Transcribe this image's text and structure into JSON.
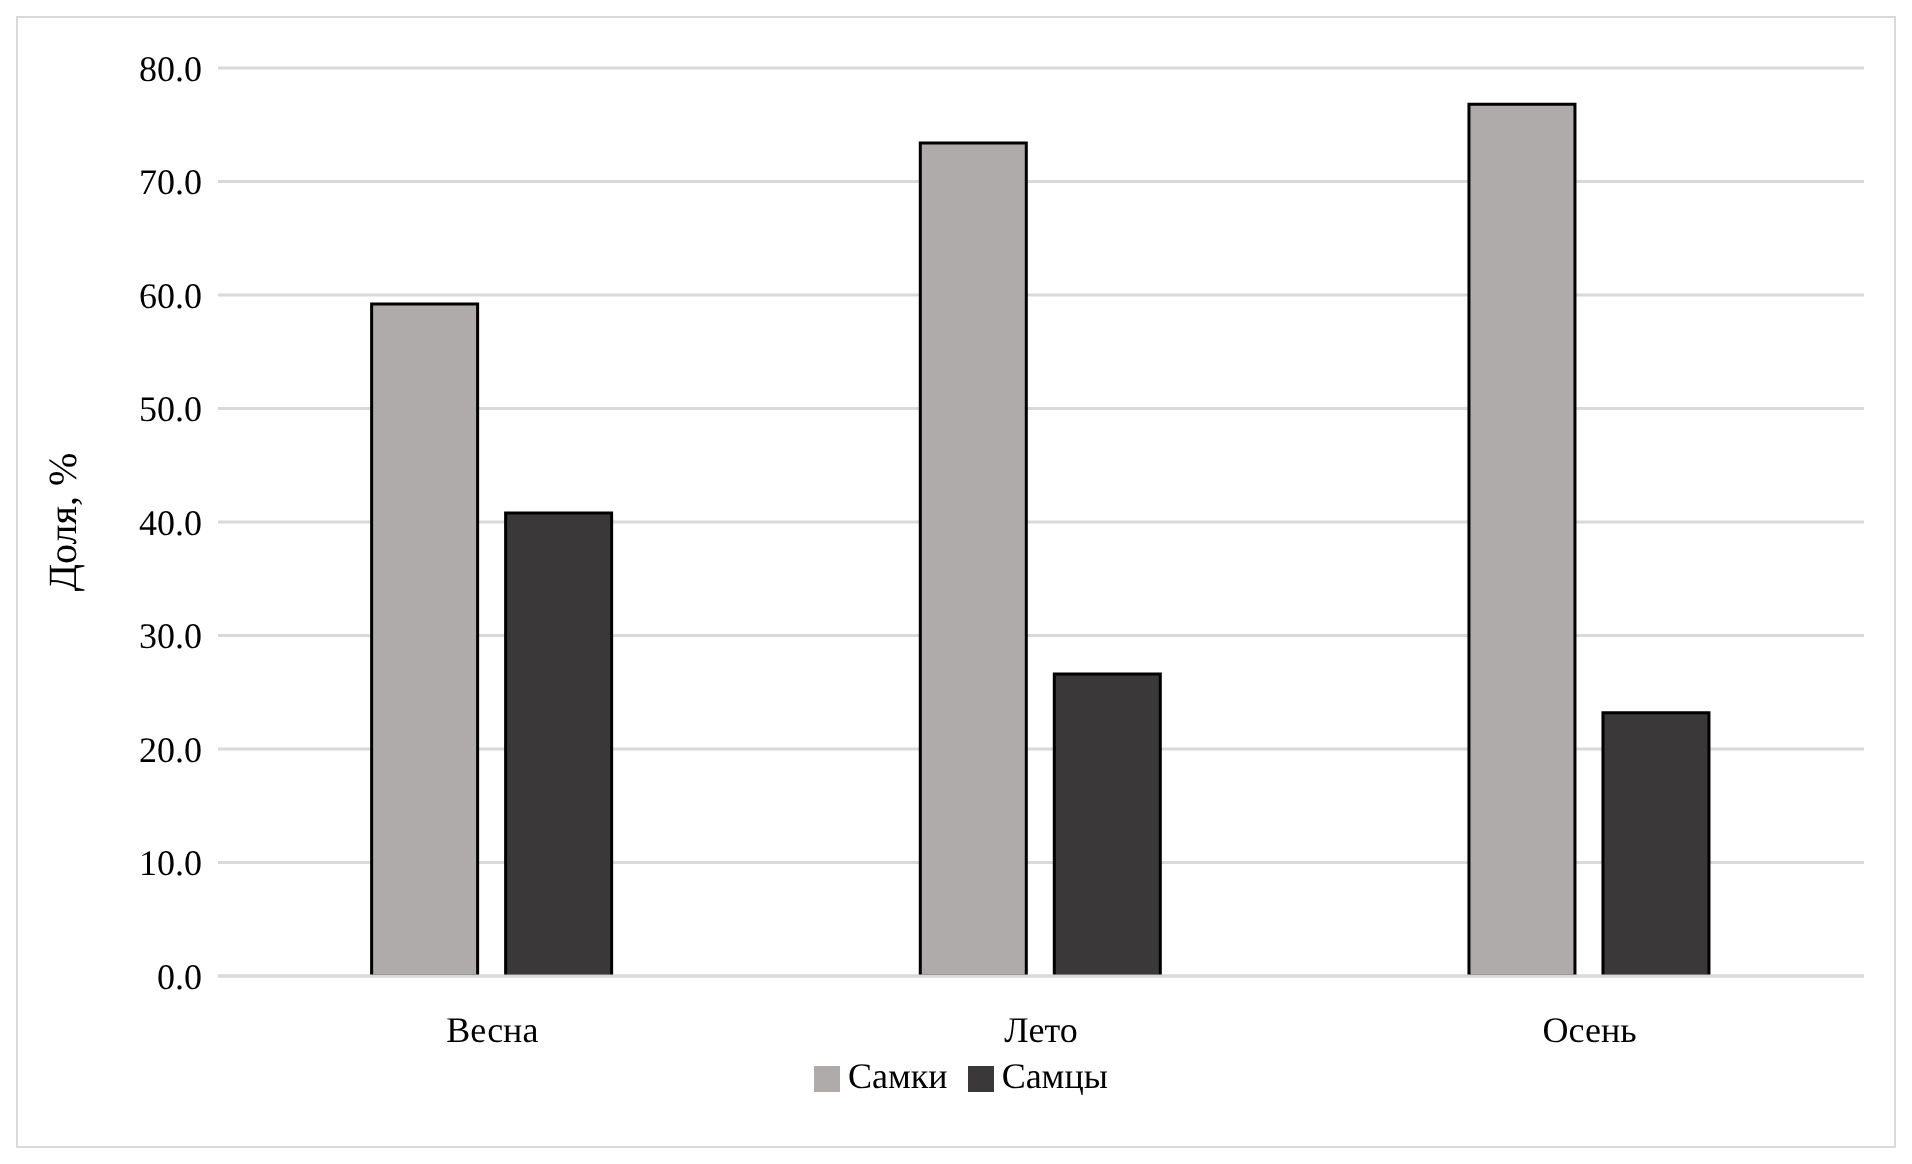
{
  "chart_data": {
    "type": "bar",
    "ylabel": "Доля, %",
    "categories": [
      "Весна",
      "Лето",
      "Осень"
    ],
    "series": [
      {
        "name": "Самки",
        "color": "#afabab",
        "values": [
          59.2,
          73.4,
          76.8
        ]
      },
      {
        "name": "Самцы",
        "color": "#3a3838",
        "values": [
          40.8,
          26.6,
          23.2
        ]
      }
    ],
    "ylim": [
      0,
      80
    ],
    "yticks": [
      {
        "value": 0,
        "label": "0.0"
      },
      {
        "value": 10,
        "label": "10.0"
      },
      {
        "value": 20,
        "label": "20.0"
      },
      {
        "value": 30,
        "label": "30.0"
      },
      {
        "value": 40,
        "label": "40.0"
      },
      {
        "value": 50,
        "label": "50.0"
      },
      {
        "value": 60,
        "label": "60.0"
      },
      {
        "value": 70,
        "label": "70.0"
      },
      {
        "value": 80,
        "label": "80.0"
      }
    ],
    "grid": "y",
    "legend": "bottom"
  }
}
